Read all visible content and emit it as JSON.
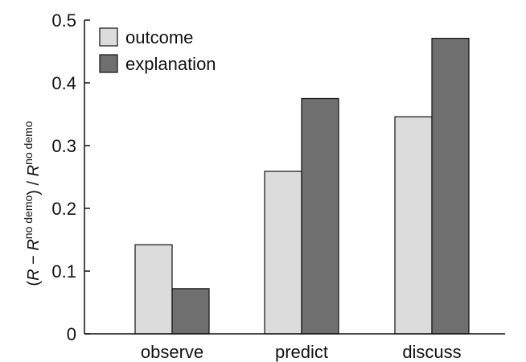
{
  "chart_data": {
    "type": "bar",
    "categories": [
      "observe",
      "predict",
      "discuss"
    ],
    "series": [
      {
        "name": "outcome",
        "values": [
          0.142,
          0.259,
          0.346
        ],
        "color": "#dcdcdc"
      },
      {
        "name": "explanation",
        "values": [
          0.072,
          0.375,
          0.471
        ],
        "color": "#6f6f6f"
      }
    ],
    "ylim": [
      0,
      0.5
    ],
    "yticks": [
      0,
      0.1,
      0.2,
      0.3,
      0.4,
      0.5
    ],
    "ytick_labels": [
      "0",
      "0.1",
      "0.2",
      "0.3",
      "0.4",
      "0.5"
    ],
    "ylabel": {
      "open": "(",
      "r1": "R",
      "minus": " − ",
      "r2": "R",
      "sup2": "no demo",
      "close": ") / ",
      "r3": "R",
      "sup3": "no demo"
    },
    "grid": false,
    "legend_position": "top-left"
  }
}
